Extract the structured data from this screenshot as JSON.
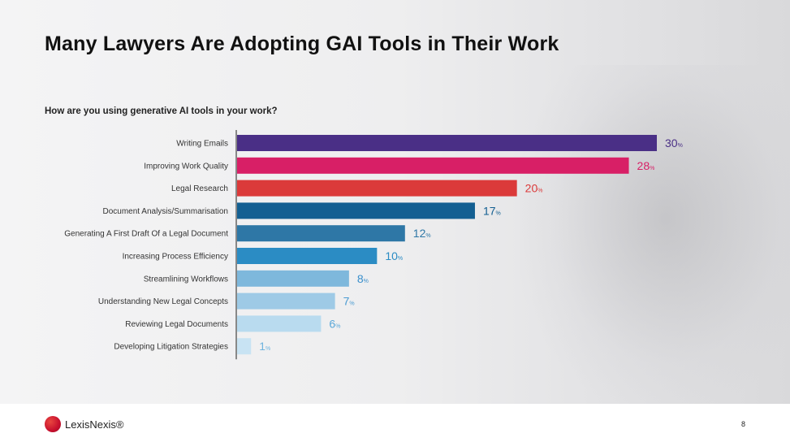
{
  "slide": {
    "title": "Many Lawyers Are Adopting GAI Tools in Their Work",
    "page_number": "8"
  },
  "logo": {
    "brand": "LexisNexis®"
  },
  "chart_data": {
    "type": "bar",
    "orientation": "horizontal",
    "question": "How are you using generative AI tools in your work?",
    "categories": [
      "Writing Emails",
      "Improving Work Quality",
      "Legal Research",
      "Document Analysis/Summarisation",
      "Generating A First Draft Of a Legal Document",
      "Increasing Process Efficiency",
      "Streamlining Workflows",
      "Understanding New Legal Concepts",
      "Reviewing Legal Documents",
      "Developing Litigation Strategies"
    ],
    "values": [
      30,
      28,
      20,
      17,
      12,
      10,
      8,
      7,
      6,
      1
    ],
    "value_suffix": "%",
    "colors": [
      "#4a2f86",
      "#d81f66",
      "#db3a3a",
      "#135f92",
      "#2e77a6",
      "#2b8cc4",
      "#7eb8dc",
      "#9ecae6",
      "#b9dbef",
      "#c8e3f3"
    ],
    "label_colors": [
      "#4a2f86",
      "#d81f66",
      "#db3a3a",
      "#135f92",
      "#2e77a6",
      "#2b8cc4",
      "#3a8fcc",
      "#4a9bd2",
      "#5aa7d8",
      "#6fb3de"
    ],
    "xlim": [
      0,
      30
    ],
    "grid": false,
    "legend": "none"
  }
}
